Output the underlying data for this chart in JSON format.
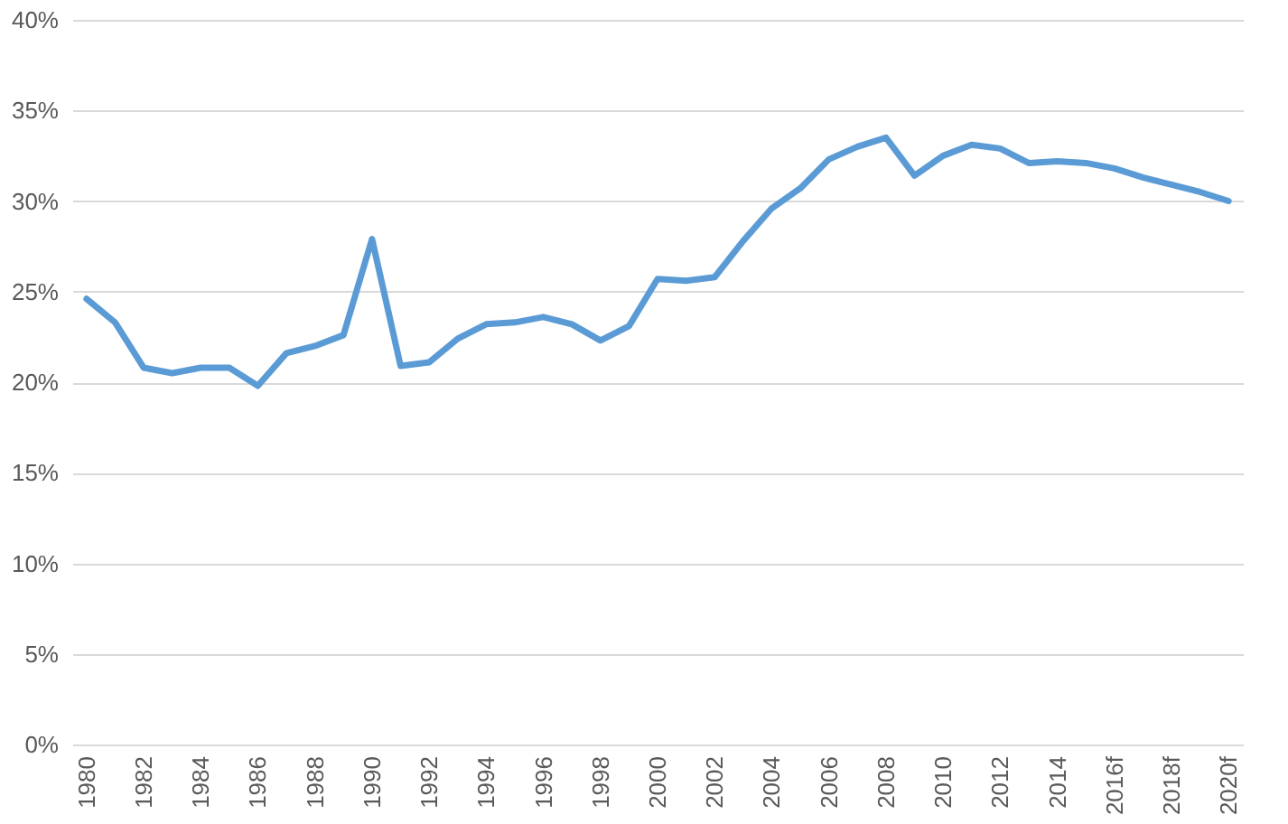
{
  "chart_data": {
    "type": "line",
    "categories": [
      "1980",
      null,
      "1982",
      null,
      "1984",
      null,
      "1986",
      null,
      "1988",
      null,
      "1990",
      null,
      "1992",
      null,
      "1994",
      null,
      "1996",
      null,
      "1998",
      null,
      "2000",
      null,
      "2002",
      null,
      "2004",
      null,
      "2006",
      null,
      "2008",
      null,
      "2010",
      null,
      "2012",
      null,
      "2014",
      null,
      "2016f",
      null,
      "2018f",
      null,
      "2020f"
    ],
    "series": [
      {
        "color": "#5b9bd5",
        "values": [
          24.6,
          23.3,
          20.8,
          20.5,
          20.8,
          20.8,
          19.8,
          21.6,
          22.0,
          22.6,
          27.9,
          20.9,
          21.1,
          22.4,
          23.2,
          23.3,
          23.6,
          23.2,
          22.3,
          23.1,
          25.7,
          25.6,
          25.8,
          27.8,
          29.6,
          30.7,
          32.3,
          33.0,
          33.5,
          31.4,
          32.5,
          33.1,
          32.9,
          32.1,
          32.2,
          32.1,
          31.8,
          31.3,
          30.9,
          30.5,
          30.0
        ]
      }
    ],
    "ylim": [
      0,
      40
    ],
    "yticks": [
      {
        "value": 0,
        "label": "0%"
      },
      {
        "value": 5,
        "label": "5%"
      },
      {
        "value": 10,
        "label": "10%"
      },
      {
        "value": 15,
        "label": "15%"
      },
      {
        "value": 20,
        "label": "20%"
      },
      {
        "value": 25,
        "label": "25%"
      },
      {
        "value": 30,
        "label": "30%"
      },
      {
        "value": 35,
        "label": "35%"
      },
      {
        "value": 40,
        "label": "40%"
      }
    ],
    "grid": "y",
    "legend": false,
    "marker": "none",
    "line_style": "solid"
  }
}
